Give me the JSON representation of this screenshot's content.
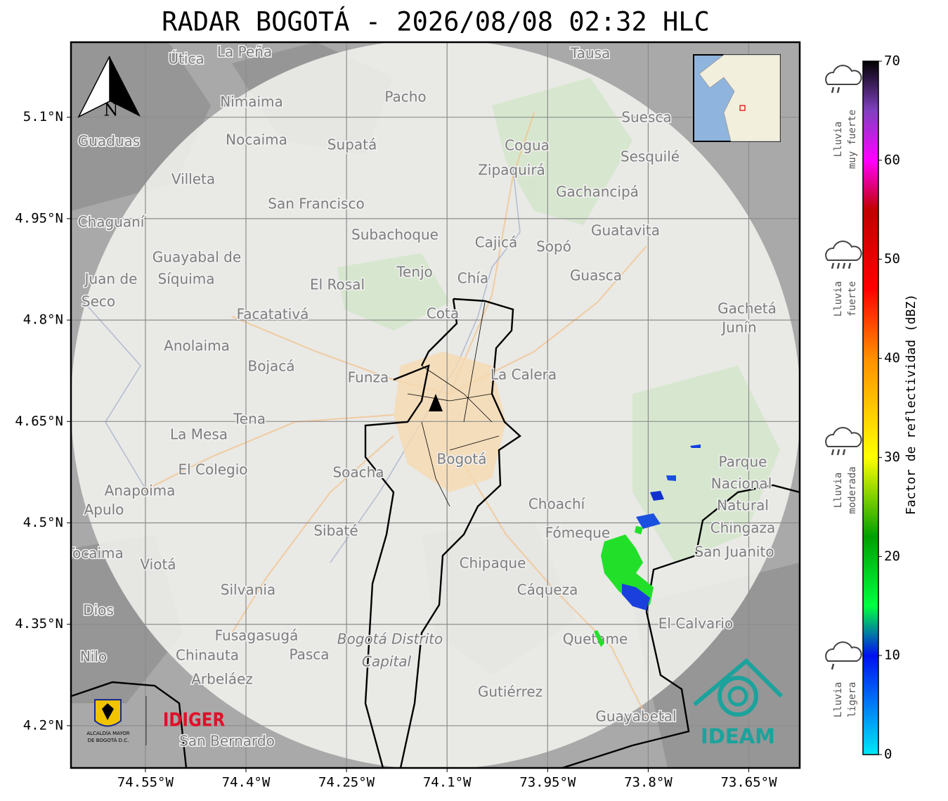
{
  "title": "RADAR BOGOTÁ - 2026/08/08 02:32 HLC",
  "map": {
    "lon_range": [
      -74.661,
      -73.574
    ],
    "lat_range": [
      4.1375,
      5.211
    ],
    "grid": true,
    "lon_ticks": [
      {
        "value": -74.55,
        "label": "74.55°W"
      },
      {
        "value": -74.4,
        "label": "74.4°W"
      },
      {
        "value": -74.25,
        "label": "74.25°W"
      },
      {
        "value": -74.1,
        "label": "74.1°W"
      },
      {
        "value": -73.95,
        "label": "73.95°W"
      },
      {
        "value": -73.8,
        "label": "73.8°W"
      },
      {
        "value": -73.65,
        "label": "73.65°W"
      }
    ],
    "lat_ticks": [
      {
        "value": 5.1,
        "label": "5.1°N"
      },
      {
        "value": 4.95,
        "label": "4.95°N"
      },
      {
        "value": 4.8,
        "label": "4.8°N"
      },
      {
        "value": 4.65,
        "label": "4.65°N"
      },
      {
        "value": 4.5,
        "label": "4.5°N"
      },
      {
        "value": 4.35,
        "label": "4.35°N"
      },
      {
        "value": 4.2,
        "label": "4.2°N"
      }
    ],
    "places": [
      "La Peña",
      "Útica",
      "Tausa",
      "Pacho",
      "Nimaima",
      "Suesca",
      "Guaduas",
      "Nocaima",
      "Supatá",
      "Cogua",
      "Sesquilé",
      "Zipaquirá",
      "Villeta",
      "Gachancipá",
      "San Francisco",
      "Chaguaní",
      "Guatavita",
      "Subachoque",
      "Cajicá",
      "Sopó",
      "Guayabal de",
      "Síquima",
      "Tenjo",
      "Juan de",
      "Chía",
      "Guasca",
      "El Rosal",
      "Seco",
      "Gachetá",
      "Facatativá",
      "Cota",
      "Junín",
      "Anolaima",
      "Bojacá",
      "Funza",
      "La Calera",
      "Tena",
      "La Mesa",
      "Bogotá",
      "Parque",
      "El Colegio",
      "Soacha",
      "Nacional",
      "Anapoima",
      "Choachí",
      "Natural",
      "Apulo",
      "Chingaza",
      "Fómeque",
      "Sibaté",
      "San Juanito",
      "Tocaima",
      "Viotá",
      "Chipaque",
      "Silvania",
      "Cáqueza",
      "Dios",
      "El Calvario",
      "Fusagasugá",
      "Bogotá Distrito",
      "Quetame",
      "Nilo",
      "Chinauta",
      "Pasca",
      "Capital",
      "Arbeláez",
      "Gutiérrez",
      "Guayabetal",
      "San Bernardo"
    ]
  },
  "north": "N",
  "colorbar": {
    "label": "Factor de reflectividad (dBZ)",
    "range": [
      0,
      70
    ],
    "ticks": [
      0,
      10,
      20,
      30,
      40,
      50,
      60,
      70
    ],
    "color_stops": [
      {
        "value": 0,
        "color": "#00e8f8"
      },
      {
        "value": 10,
        "color": "#0010f0"
      },
      {
        "value": 15,
        "color": "#00ff40"
      },
      {
        "value": 22,
        "color": "#00a000"
      },
      {
        "value": 30,
        "color": "#ffff00"
      },
      {
        "value": 40,
        "color": "#ff9000"
      },
      {
        "value": 47,
        "color": "#ff0000"
      },
      {
        "value": 55,
        "color": "#c00000"
      },
      {
        "value": 60,
        "color": "#ff00ff"
      },
      {
        "value": 65,
        "color": "#8040c0"
      },
      {
        "value": 70,
        "color": "#000000"
      }
    ]
  },
  "intensity_legend": [
    [
      "Lluvia",
      "muy fuerte"
    ],
    [
      "Lluvia",
      "fuerte"
    ],
    [
      "Lluvia",
      "moderada"
    ],
    [
      "Lluvia",
      "ligera"
    ]
  ],
  "logos": {
    "alcaldia": [
      "ALCALDÍA MAYOR",
      "DE BOGOTÁ D.C."
    ],
    "idiger": "IDIGER",
    "ideam": "IDEAM"
  }
}
